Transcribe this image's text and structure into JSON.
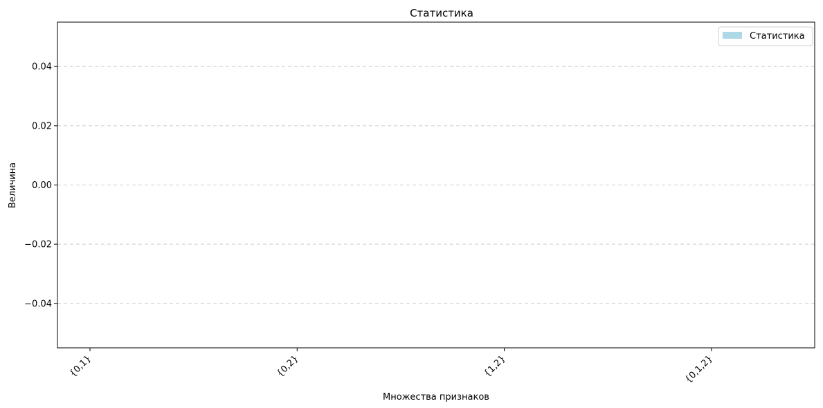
{
  "chart_data": {
    "type": "bar",
    "title": "Статистика",
    "xlabel": "Множества признаков",
    "ylabel": "Величина",
    "categories": [
      "{0,1}",
      "{0,2}",
      "{1,2}",
      "{0,1,2}"
    ],
    "series": [
      {
        "name": "Статистика",
        "values": [
          0,
          0,
          0,
          0
        ],
        "color": "#add8e6"
      }
    ],
    "ylim": [
      -0.055,
      0.055
    ],
    "yticks": [
      -0.04,
      -0.02,
      0.0,
      0.02,
      0.04
    ],
    "ytick_labels": [
      "−0.04",
      "−0.02",
      "0.00",
      "0.02",
      "0.04"
    ],
    "grid": {
      "y": true,
      "x": false,
      "style": "dashed",
      "color": "#cccccc"
    },
    "legend": {
      "placement": "top-right"
    }
  }
}
